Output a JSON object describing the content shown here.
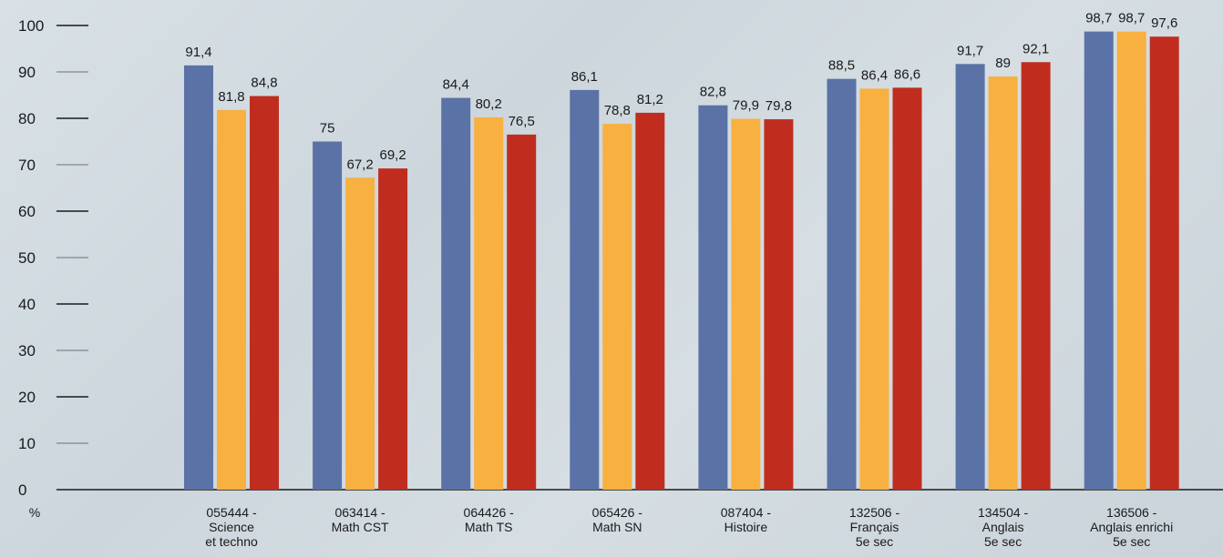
{
  "chart_data": {
    "type": "bar",
    "ylabel": "%",
    "ylim": [
      0,
      100
    ],
    "yticks": [
      "0",
      "10",
      "20",
      "30",
      "40",
      "50",
      "60",
      "70",
      "80",
      "90",
      "100"
    ],
    "categories": [
      [
        "055444 -",
        "Science",
        "et techno"
      ],
      [
        "063414 -",
        "Math CST"
      ],
      [
        "064426 -",
        "Math TS"
      ],
      [
        "065426 -",
        "Math SN"
      ],
      [
        "087404 -",
        "Histoire"
      ],
      [
        "132506 -",
        "Français",
        "5e sec"
      ],
      [
        "134504 -",
        "Anglais",
        "5e sec"
      ],
      [
        "136506 -",
        "Anglais enrichi",
        "5e sec"
      ]
    ],
    "series": [
      {
        "color": "#5a72a6",
        "values": [
          91.4,
          75,
          84.4,
          86.1,
          82.8,
          88.5,
          91.7,
          98.7
        ],
        "labels": [
          "91,4",
          "75",
          "84,4",
          "86,1",
          "82,8",
          "88,5",
          "91,7",
          "98,7"
        ]
      },
      {
        "color": "#f8b040",
        "values": [
          81.8,
          67.2,
          80.2,
          78.8,
          79.9,
          86.4,
          89,
          98.7
        ],
        "labels": [
          "81,8",
          "67,2",
          "80,2",
          "78,8",
          "79,9",
          "86,4",
          "89",
          "98,7"
        ]
      },
      {
        "color": "#c02d1f",
        "values": [
          84.8,
          69.2,
          76.5,
          81.2,
          79.8,
          86.6,
          92.1,
          97.6
        ],
        "labels": [
          "84,8",
          "69,2",
          "76,5",
          "81,2",
          "79,8",
          "86,6",
          "92,1",
          "97,6"
        ]
      }
    ]
  }
}
